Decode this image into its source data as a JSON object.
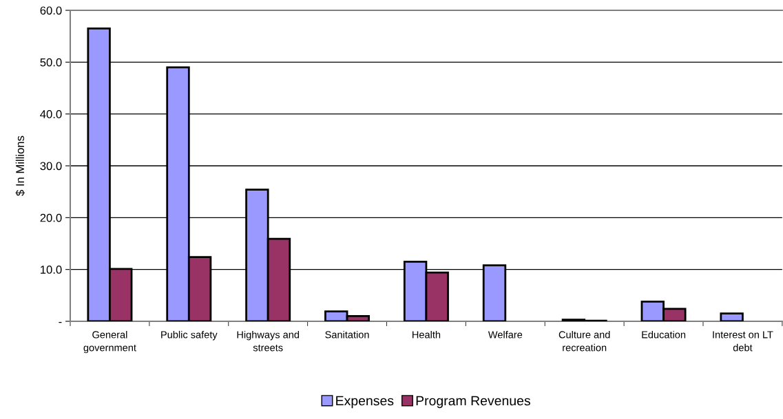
{
  "chart_data": {
    "type": "bar",
    "ylabel": "$ In Millions",
    "categories": [
      "General government",
      "Public safety",
      "Highways and streets",
      "Sanitation",
      "Health",
      "Welfare",
      "Culture and recreation",
      "Education",
      "Interest on LT debt"
    ],
    "series": [
      {
        "name": "Expenses",
        "color": "#9999ff",
        "values": [
          56.5,
          49.0,
          25.4,
          1.9,
          11.5,
          10.8,
          0.3,
          3.8,
          1.5
        ]
      },
      {
        "name": "Program Revenues",
        "color": "#993366",
        "values": [
          10.1,
          12.4,
          15.9,
          1.0,
          9.4,
          null,
          0.1,
          2.4,
          null
        ]
      }
    ],
    "ylim": [
      0,
      60
    ],
    "yticks": [
      {
        "value": 0,
        "label": "-"
      },
      {
        "value": 10,
        "label": "10.0"
      },
      {
        "value": 20,
        "label": "20.0"
      },
      {
        "value": 30,
        "label": "30.0"
      },
      {
        "value": 40,
        "label": "40.0"
      },
      {
        "value": 50,
        "label": "50.0"
      },
      {
        "value": 60,
        "label": "60.0"
      }
    ],
    "grid": "y",
    "legend": "bottom"
  }
}
